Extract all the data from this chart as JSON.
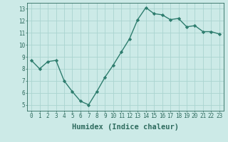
{
  "x": [
    0,
    1,
    2,
    3,
    4,
    5,
    6,
    7,
    8,
    9,
    10,
    11,
    12,
    13,
    14,
    15,
    16,
    17,
    18,
    19,
    20,
    21,
    22,
    23
  ],
  "y": [
    8.7,
    8.0,
    8.6,
    8.7,
    7.0,
    6.1,
    5.3,
    5.0,
    6.1,
    7.3,
    8.3,
    9.4,
    10.5,
    12.1,
    13.1,
    12.6,
    12.5,
    12.1,
    12.2,
    11.5,
    11.6,
    11.1,
    11.1,
    10.9
  ],
  "line_color": "#2e7d6e",
  "marker": "D",
  "marker_size": 2.2,
  "bg_color": "#cceae7",
  "grid_color": "#aad4d0",
  "xlabel": "Humidex (Indice chaleur)",
  "ylim": [
    4.5,
    13.5
  ],
  "xlim": [
    -0.5,
    23.5
  ],
  "yticks": [
    5,
    6,
    7,
    8,
    9,
    10,
    11,
    12,
    13
  ],
  "xticks": [
    0,
    1,
    2,
    3,
    4,
    5,
    6,
    7,
    8,
    9,
    10,
    11,
    12,
    13,
    14,
    15,
    16,
    17,
    18,
    19,
    20,
    21,
    22,
    23
  ],
  "tick_fontsize": 5.5,
  "xlabel_fontsize": 7.5,
  "axis_color": "#2e6b5e",
  "linewidth": 1.0
}
